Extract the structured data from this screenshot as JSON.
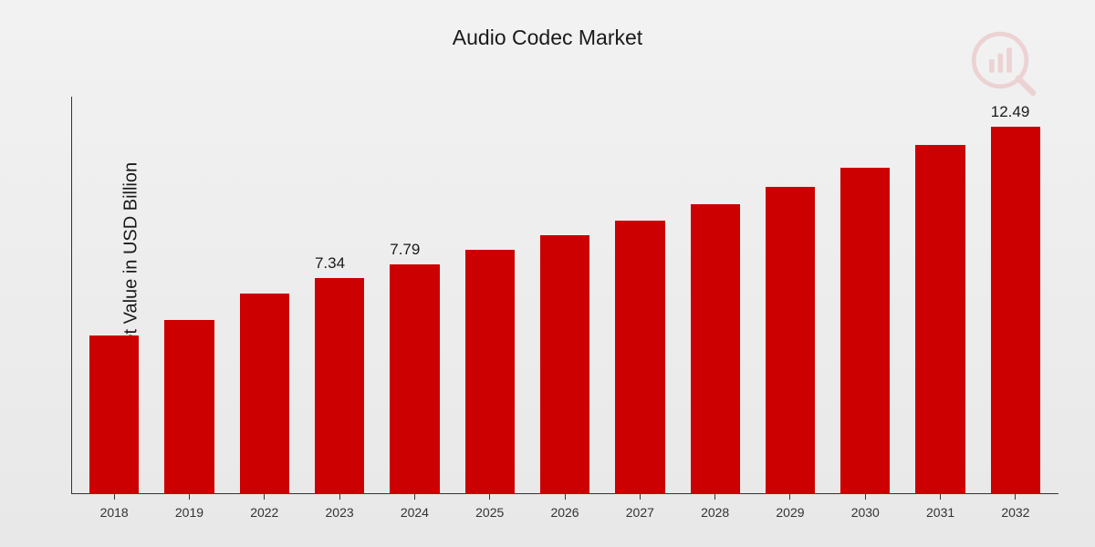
{
  "chart": {
    "type": "bar",
    "title": "Audio Codec Market",
    "ylabel": "Market Value in USD Billion",
    "title_fontsize": 23,
    "ylabel_fontsize": 20,
    "bar_label_fontsize": 17,
    "tick_label_fontsize": 14,
    "background_gradient": [
      "#f2f2f2",
      "#e8e8e8"
    ],
    "axis_color": "#333333",
    "text_color": "#1a1a1a",
    "bar_color": "#cc0000",
    "bar_width_ratio": 0.66,
    "ylim": [
      0,
      13.5
    ],
    "categories": [
      "2018",
      "2019",
      "2022",
      "2023",
      "2024",
      "2025",
      "2026",
      "2027",
      "2028",
      "2029",
      "2030",
      "2031",
      "2032"
    ],
    "values": [
      5.4,
      5.9,
      6.8,
      7.34,
      7.79,
      8.3,
      8.8,
      9.3,
      9.85,
      10.45,
      11.1,
      11.85,
      12.49
    ],
    "value_labels": [
      "",
      "",
      "",
      "7.34",
      "7.79",
      "",
      "",
      "",
      "",
      "",
      "",
      "",
      "12.49"
    ],
    "watermark_color": "#cc0000"
  }
}
